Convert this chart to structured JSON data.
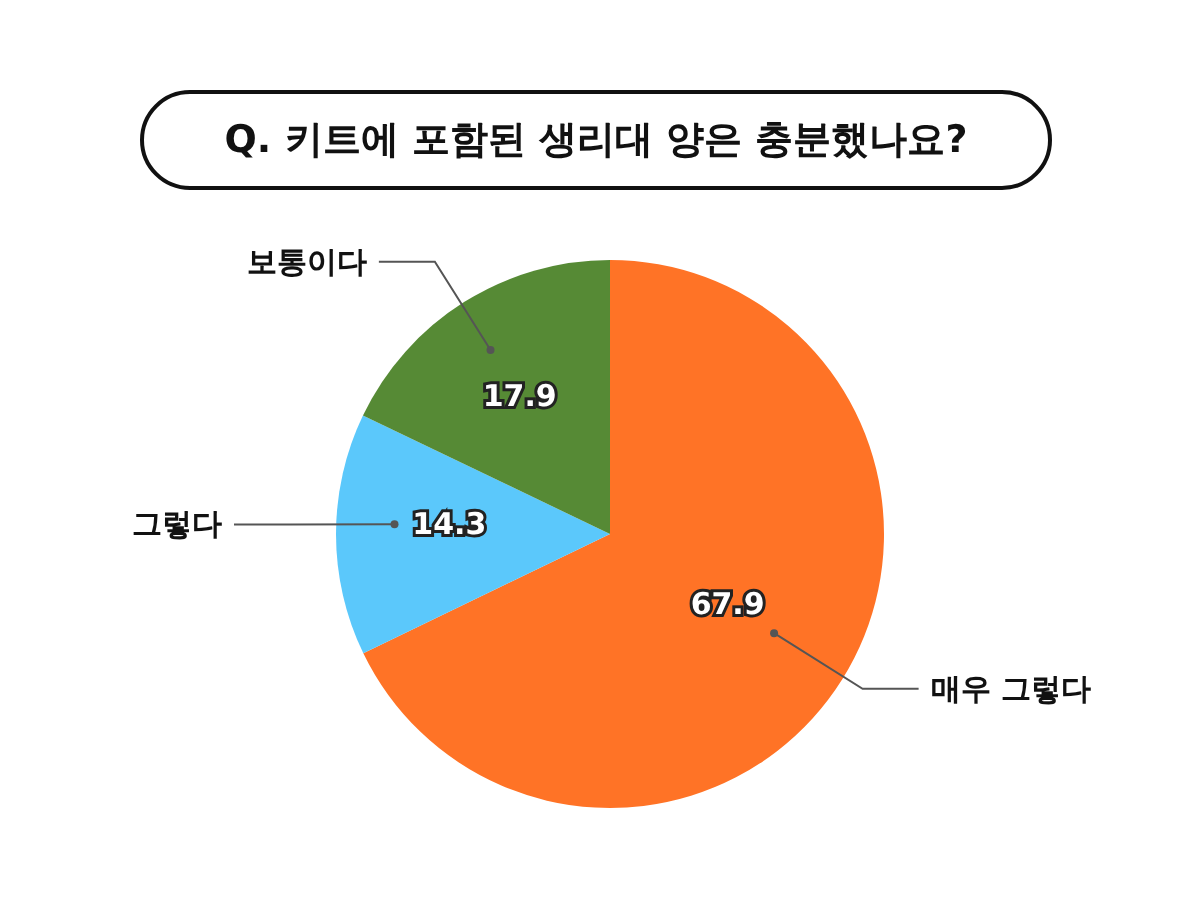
{
  "chart_data": {
    "type": "pie",
    "title": "Q. 키트에 포함된 생리대 양은 충분했나요?",
    "categories": [
      "매우 그렇다",
      "그렇다",
      "보통이다"
    ],
    "values": [
      67.9,
      14.3,
      17.9
    ],
    "colors": [
      "#ff7326",
      "#5bc8fb",
      "#568a35"
    ],
    "data_labels": true
  }
}
